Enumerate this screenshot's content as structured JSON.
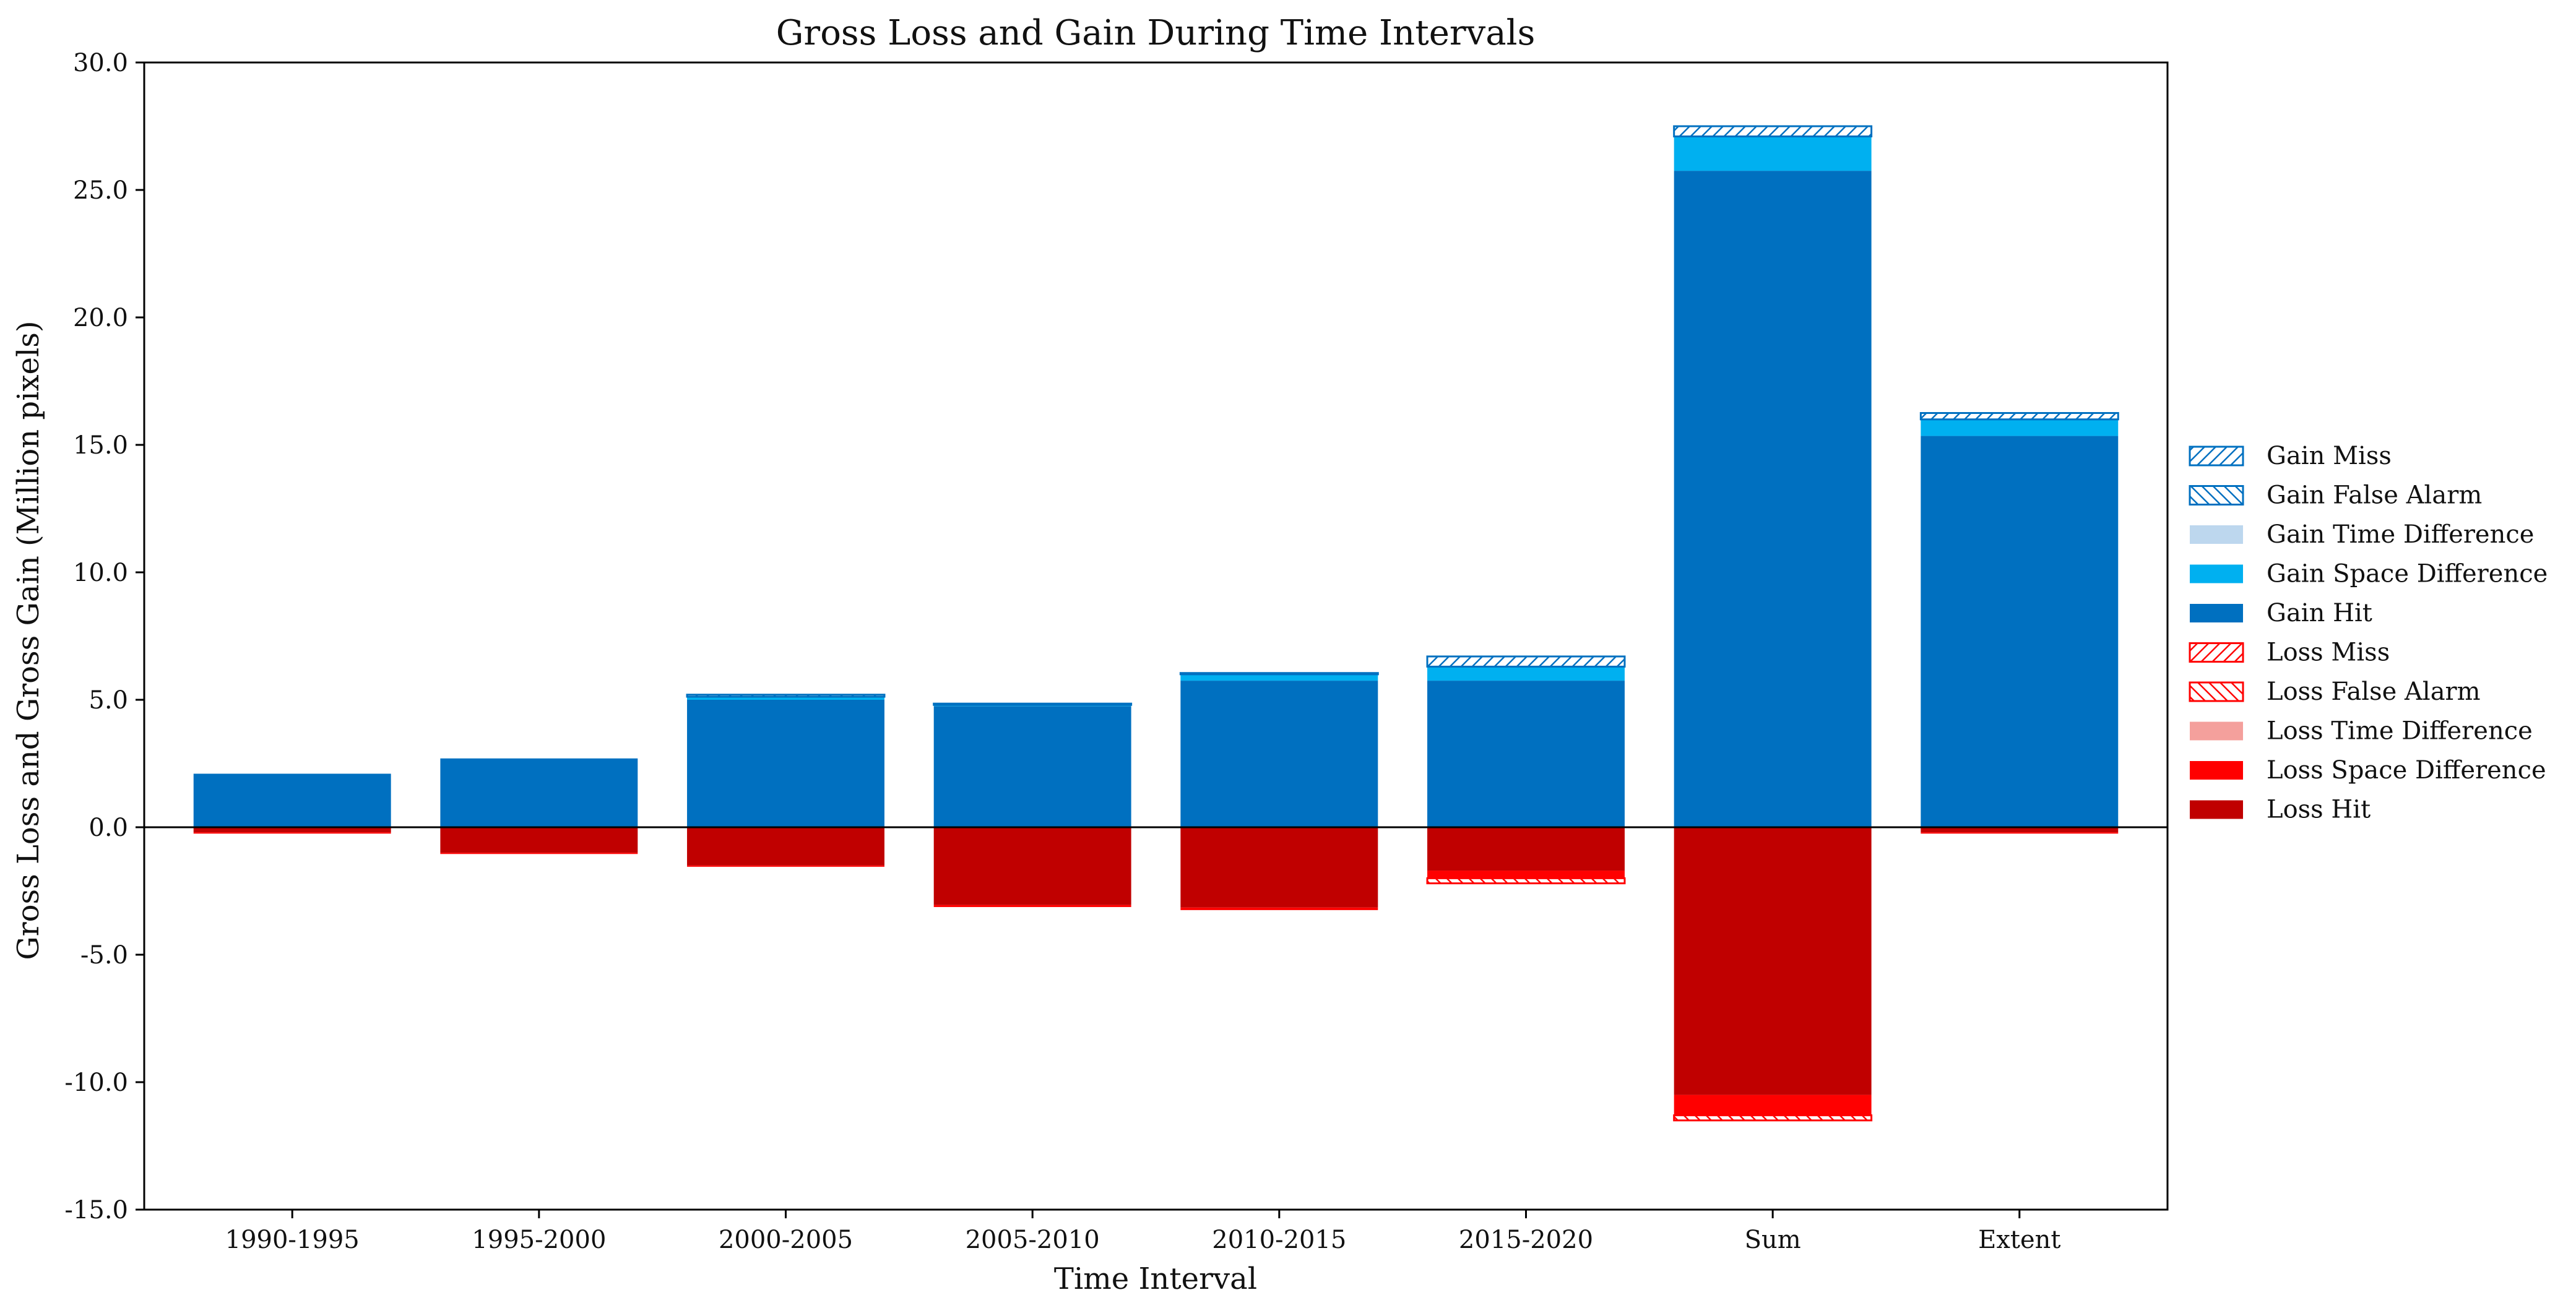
{
  "chart_data": {
    "type": "bar",
    "title": "Gross Loss and Gain During Time Intervals",
    "xlabel": "Time Interval",
    "ylabel": "Gross Loss and Gross Gain (Million pixels)",
    "ylim": [
      -15,
      30
    ],
    "yticks": [
      -15,
      -10,
      -5,
      0,
      5,
      10,
      15,
      20,
      25,
      30
    ],
    "ytick_labels": [
      "-15.0",
      "-10.0",
      "-5.0",
      "0.0",
      "5.0",
      "10.0",
      "15.0",
      "20.0",
      "25.0",
      "30.0"
    ],
    "categories": [
      "1990-1995",
      "1995-2000",
      "2000-2005",
      "2005-2010",
      "2010-2015",
      "2015-2020",
      "Sum",
      "Extent"
    ],
    "grid": false,
    "legend_position": "center-right outside",
    "gain_series": [
      {
        "name": "Gain Hit",
        "color": "#0070C0",
        "pattern": "solid",
        "values": [
          2.1,
          2.7,
          5.0,
          4.75,
          5.75,
          5.75,
          25.75,
          15.35
        ]
      },
      {
        "name": "Gain Space Difference",
        "color": "#00B0F0",
        "pattern": "solid",
        "values": [
          0.0,
          0.0,
          0.12,
          0.05,
          0.25,
          0.55,
          1.35,
          0.65
        ]
      },
      {
        "name": "Gain Time Difference",
        "color": "#BDD7EE",
        "pattern": "solid",
        "values": [
          0.0,
          0.0,
          0.0,
          0.0,
          0.0,
          0.0,
          0.0,
          0.0
        ]
      },
      {
        "name": "Gain False Alarm",
        "color": "#0070C0",
        "pattern": "hatch-forward",
        "values": [
          0.0,
          0.0,
          0.0,
          0.0,
          0.0,
          0.0,
          0.0,
          0.0
        ]
      },
      {
        "name": "Gain Miss",
        "color": "#0070C0",
        "pattern": "hatch-back",
        "values": [
          0.0,
          0.0,
          0.08,
          0.05,
          0.05,
          0.4,
          0.4,
          0.25
        ]
      }
    ],
    "loss_series": [
      {
        "name": "Loss Hit",
        "color": "#C00000",
        "pattern": "solid",
        "values": [
          -0.2,
          -1.0,
          -1.5,
          -3.05,
          -3.15,
          -1.7,
          -10.5,
          -0.2
        ]
      },
      {
        "name": "Loss Space Difference",
        "color": "#FF0000",
        "pattern": "solid",
        "values": [
          -0.05,
          -0.05,
          -0.05,
          -0.08,
          -0.1,
          -0.3,
          -0.8,
          -0.05
        ]
      },
      {
        "name": "Loss Time Difference",
        "color": "#F4A09C",
        "pattern": "solid",
        "values": [
          0.0,
          0.0,
          0.0,
          0.0,
          0.0,
          0.0,
          0.0,
          0.0
        ]
      },
      {
        "name": "Loss False Alarm",
        "color": "#FF0000",
        "pattern": "hatch-forward",
        "values": [
          0.0,
          0.0,
          0.0,
          0.0,
          0.0,
          -0.2,
          -0.2,
          0.0
        ]
      },
      {
        "name": "Loss Miss",
        "color": "#FF0000",
        "pattern": "hatch-back",
        "values": [
          0.0,
          0.0,
          0.0,
          0.0,
          0.0,
          0.0,
          0.0,
          0.0
        ]
      }
    ],
    "legend": [
      {
        "name": "Gain Miss",
        "color": "#0070C0",
        "pattern": "hatch-back"
      },
      {
        "name": "Gain False Alarm",
        "color": "#0070C0",
        "pattern": "hatch-forward"
      },
      {
        "name": "Gain Time Difference",
        "color": "#BDD7EE",
        "pattern": "solid"
      },
      {
        "name": "Gain Space Difference",
        "color": "#00B0F0",
        "pattern": "solid"
      },
      {
        "name": "Gain Hit",
        "color": "#0070C0",
        "pattern": "solid"
      },
      {
        "name": "Loss Miss",
        "color": "#FF0000",
        "pattern": "hatch-back"
      },
      {
        "name": "Loss False Alarm",
        "color": "#FF0000",
        "pattern": "hatch-forward"
      },
      {
        "name": "Loss Time Difference",
        "color": "#F4A09C",
        "pattern": "solid"
      },
      {
        "name": "Loss Space Difference",
        "color": "#FF0000",
        "pattern": "solid"
      },
      {
        "name": "Loss Hit",
        "color": "#C00000",
        "pattern": "solid"
      }
    ]
  }
}
